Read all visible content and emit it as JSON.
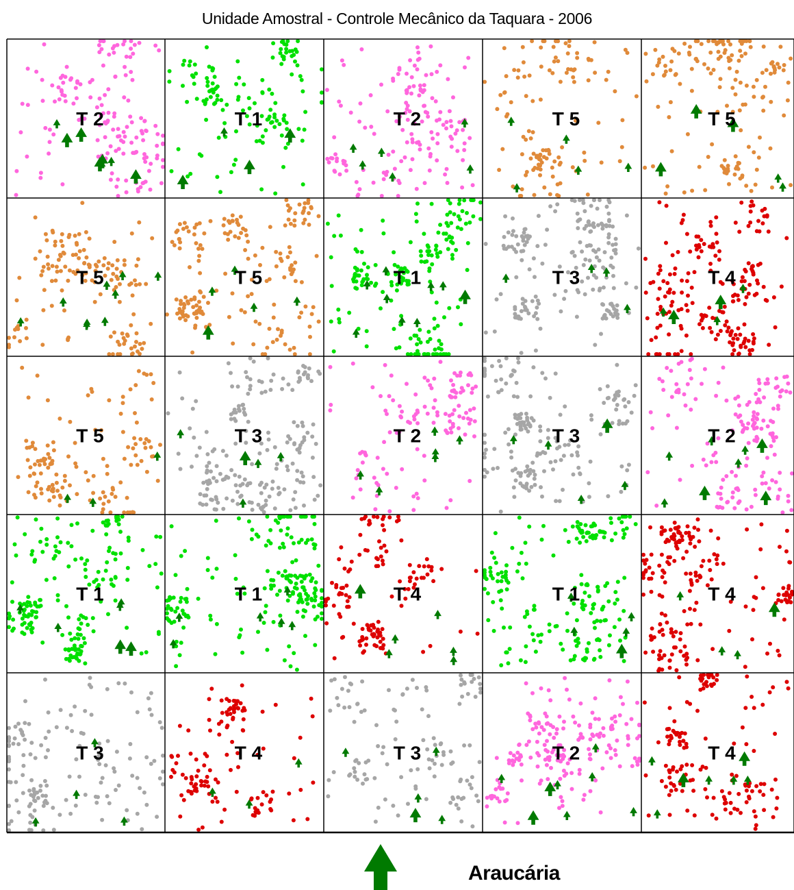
{
  "title": "Unidade Amostral - Controle Mecânico  da Taquara - 2006",
  "legend": {
    "label": "Araucária",
    "icon": "araucaria-tree-icon",
    "color": "#007a00"
  },
  "treatments": {
    "T 1": {
      "color": "#00e000"
    },
    "T 2": {
      "color": "#ff66dd"
    },
    "T 3": {
      "color": "#a6a6a6"
    },
    "T 4": {
      "color": "#dd0000"
    },
    "T 5": {
      "color": "#e08a3a"
    }
  },
  "grid": {
    "rows": [
      [
        "T 2",
        "T 1",
        "T 2",
        "T 5",
        "T 5"
      ],
      [
        "T 5",
        "T 5",
        "T 1",
        "T 3",
        "T 4"
      ],
      [
        "T 5",
        "T 3",
        "T 2",
        "T 3",
        "T 2"
      ],
      [
        "T 1",
        "T 1",
        "T 4",
        "T 1",
        "T 4"
      ],
      [
        "T 3",
        "T 4",
        "T 3",
        "T 2",
        "T 4"
      ]
    ]
  }
}
